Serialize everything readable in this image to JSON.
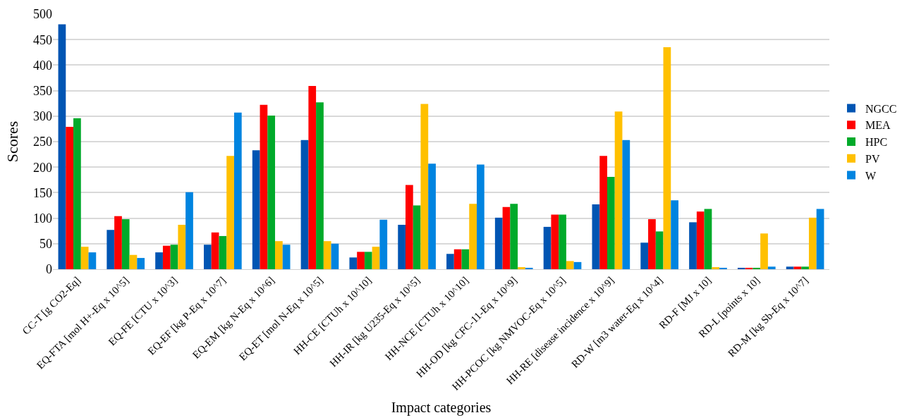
{
  "chart_data": {
    "type": "bar",
    "xlabel": "Impact categories",
    "ylabel": "Scores",
    "categories": [
      "CC-T [g CO2-Eq]",
      "EQ-FTA [mol H+-Eq x 10^5]",
      "EQ-FE [CTU x 10^3]",
      "EQ-EF [kg P-Eq x 10^7]",
      "EQ-EM [kg N-Eq x 10^6]",
      "EQ-ET [mol N-Eq x 10^5]",
      "HH-CE [CTUh x 10^10]",
      "HH-IR [kg U235-Eq x 10^5]",
      "HH-NCE [CTUh x 10^10]",
      "HH-OD [kg CFC-11-Eq x 10^9]",
      "HH-PCOC [kg NMVOC-Eq x 10^5]",
      "HH-RE [disease incidence x 10^9]",
      "RD-W [m3 water-Eq x 10^4]",
      "RD-F [MJ x 10]",
      "RD-L [points x 10]",
      "RD-M [kg Sb-Eq x 10^7]"
    ],
    "series": [
      {
        "name": "NGCC",
        "color": "#0055b3",
        "values": [
          480,
          77,
          33,
          48,
          233,
          253,
          23,
          87,
          30,
          101,
          83,
          127,
          52,
          92,
          2,
          5
        ]
      },
      {
        "name": "MEA",
        "color": "#ff0000",
        "values": [
          279,
          104,
          46,
          72,
          322,
          359,
          34,
          165,
          39,
          122,
          107,
          222,
          98,
          113,
          2,
          5
        ]
      },
      {
        "name": "HPC",
        "color": "#00aa2a",
        "values": [
          296,
          98,
          48,
          65,
          301,
          327,
          34,
          125,
          39,
          128,
          107,
          181,
          74,
          118,
          2,
          5
        ]
      },
      {
        "name": "PV",
        "color": "#ffc000",
        "values": [
          44,
          28,
          87,
          222,
          55,
          55,
          44,
          324,
          128,
          4,
          16,
          309,
          435,
          4,
          70,
          101
        ]
      },
      {
        "name": "W",
        "color": "#0084e0",
        "values": [
          33,
          22,
          151,
          307,
          48,
          50,
          97,
          207,
          205,
          2,
          14,
          253,
          135,
          2,
          5,
          118
        ]
      }
    ],
    "ylim": [
      0,
      500
    ],
    "yticks": [
      0,
      50,
      100,
      150,
      200,
      250,
      300,
      350,
      400,
      450,
      500
    ],
    "grid": "y",
    "legend": "right"
  }
}
